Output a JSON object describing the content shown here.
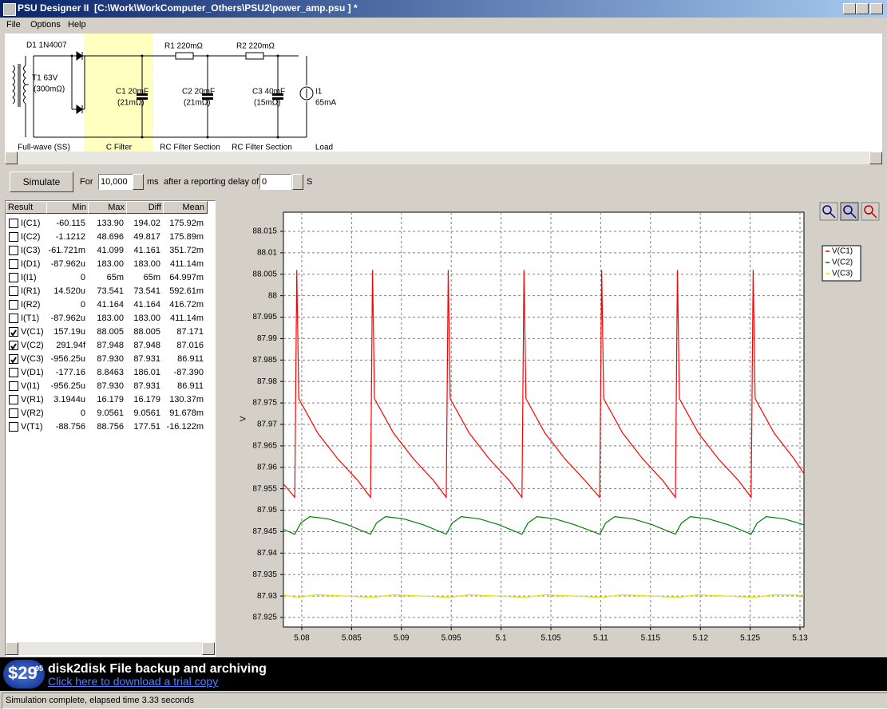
{
  "window": {
    "title": "PSU Designer II  [C:\\Work\\WorkComputer_Others\\PSU2\\power_amp.psu ] *",
    "menu": [
      "File",
      "Options",
      "Help"
    ]
  },
  "schematic": {
    "d1": "D1 1N4007",
    "t1": "T1 63V",
    "t1_r": "(300mΩ)",
    "c1": "C1 20mF",
    "c1_r": "(21mΩ)",
    "r1": "R1 220mΩ",
    "c2": "C2 20mF",
    "c2_r": "(21mΩ)",
    "r2": "R2 220mΩ",
    "c3": "C3 40mF",
    "c3_r": "(15mΩ)",
    "i1": "I1",
    "i1_v": "65mA",
    "sections": [
      "Full-wave (SS)",
      "C Filter",
      "RC Filter Section",
      "RC Filter Section",
      "Load"
    ]
  },
  "toolbar": {
    "button": "Simulate",
    "for_label": "For",
    "duration": "10,000",
    "duration_unit": "ms",
    "delay_label": "after a reporting delay of",
    "delay": "0",
    "delay_unit": "S"
  },
  "results": {
    "headers": [
      "Result",
      "Min",
      "Max",
      "Diff",
      "Mean"
    ],
    "rows": [
      [
        "I(C1)",
        "-60.115",
        "133.90",
        "194.02",
        "175.92m",
        false
      ],
      [
        "I(C2)",
        "-1.1212",
        "48.696",
        "49.817",
        "175.89m",
        false
      ],
      [
        "I(C3)",
        "-61.721m",
        "41.099",
        "41.161",
        "351.72m",
        false
      ],
      [
        "I(D1)",
        "-87.962u",
        "183.00",
        "183.00",
        "411.14m",
        false
      ],
      [
        "I(I1)",
        "0",
        "65m",
        "65m",
        "64.997m",
        false
      ],
      [
        "I(R1)",
        "14.520u",
        "73.541",
        "73.541",
        "592.61m",
        false
      ],
      [
        "I(R2)",
        "0",
        "41.164",
        "41.164",
        "416.72m",
        false
      ],
      [
        "I(T1)",
        "-87.962u",
        "183.00",
        "183.00",
        "411.14m",
        false
      ],
      [
        "V(C1)",
        "157.19u",
        "88.005",
        "88.005",
        "87.171",
        true
      ],
      [
        "V(C2)",
        "291.94f",
        "87.948",
        "87.948",
        "87.016",
        true
      ],
      [
        "V(C3)",
        "-956.25u",
        "87.930",
        "87.931",
        "86.911",
        true
      ],
      [
        "V(D1)",
        "-177.16",
        "8.8463",
        "186.01",
        "-87.390",
        false
      ],
      [
        "V(I1)",
        "-956.25u",
        "87.930",
        "87.931",
        "86.911",
        false
      ],
      [
        "V(R1)",
        "3.1944u",
        "16.179",
        "16.179",
        "130.37m",
        false
      ],
      [
        "V(R2)",
        "0",
        "9.0561",
        "9.0561",
        "91.678m",
        false
      ],
      [
        "V(T1)",
        "-88.756",
        "88.756",
        "177.51",
        "-16.122m",
        false
      ]
    ]
  },
  "chart_data": {
    "type": "line",
    "y_label": "V",
    "xlim": [
      5.07816,
      5.1304
    ],
    "xticks": [
      5.08,
      5.085,
      5.09,
      5.095,
      5.1,
      5.105,
      5.11,
      5.115,
      5.12,
      5.125,
      5.13
    ],
    "ylim": [
      87.92277,
      88.01946
    ],
    "yticks": [
      87.925,
      87.93,
      87.935,
      87.94,
      87.945,
      87.95,
      87.955,
      87.96,
      87.965,
      87.97,
      87.975,
      87.98,
      87.985,
      87.99,
      87.995,
      88,
      88.005,
      88.01,
      88.015
    ],
    "grid": true,
    "series": [
      {
        "name": "V(C1)",
        "color": "#ff0000",
        "x": [
          5.0782,
          5.0793,
          5.0795,
          5.0797,
          5.0816,
          5.0836,
          5.0856,
          5.0869,
          5.0871,
          5.0873,
          5.0892,
          5.0912,
          5.0932,
          5.0945,
          5.0947,
          5.0949,
          5.0968,
          5.0988,
          5.1008,
          5.1021,
          5.1023,
          5.1025,
          5.1044,
          5.1064,
          5.1084,
          5.1099,
          5.1101,
          5.1103,
          5.1122,
          5.1142,
          5.1162,
          5.1175,
          5.1177,
          5.1179,
          5.1198,
          5.1218,
          5.1238,
          5.1251,
          5.1253,
          5.1255,
          5.1274,
          5.1294,
          5.1304
        ],
        "values": [
          87.956,
          87.953,
          88.006,
          87.976,
          87.968,
          87.962,
          87.957,
          87.953,
          88.006,
          87.976,
          87.968,
          87.962,
          87.957,
          87.953,
          88.006,
          87.976,
          87.968,
          87.962,
          87.957,
          87.953,
          88.006,
          87.976,
          87.968,
          87.962,
          87.957,
          87.953,
          88.006,
          87.976,
          87.968,
          87.962,
          87.957,
          87.953,
          88.006,
          87.976,
          87.968,
          87.962,
          87.957,
          87.953,
          88.006,
          87.976,
          87.968,
          87.962,
          87.9585
        ]
      },
      {
        "name": "V(C2)",
        "color": "#008000",
        "x": [
          5.0782,
          5.0793,
          5.0799,
          5.0808,
          5.0826,
          5.0846,
          5.0869,
          5.0875,
          5.0884,
          5.0902,
          5.0922,
          5.0945,
          5.0951,
          5.096,
          5.0978,
          5.0998,
          5.1021,
          5.1027,
          5.1036,
          5.1054,
          5.1074,
          5.1099,
          5.1105,
          5.1114,
          5.1132,
          5.1152,
          5.1175,
          5.1181,
          5.119,
          5.1208,
          5.1228,
          5.1251,
          5.1257,
          5.1266,
          5.1284,
          5.1304
        ],
        "values": [
          87.9455,
          87.9444,
          87.947,
          87.9485,
          87.948,
          87.9466,
          87.9444,
          87.947,
          87.9485,
          87.948,
          87.9466,
          87.9444,
          87.947,
          87.9485,
          87.948,
          87.9466,
          87.9444,
          87.947,
          87.9485,
          87.948,
          87.9466,
          87.9444,
          87.947,
          87.9485,
          87.948,
          87.9466,
          87.9444,
          87.947,
          87.9485,
          87.948,
          87.9466,
          87.9444,
          87.947,
          87.9485,
          87.948,
          87.9466
        ]
      },
      {
        "name": "V(C3)",
        "color": "#e6e600",
        "x": [
          5.0782,
          5.0796,
          5.0816,
          5.0872,
          5.0892,
          5.0948,
          5.0968,
          5.1024,
          5.1044,
          5.1102,
          5.1122,
          5.1178,
          5.1198,
          5.1254,
          5.1274,
          5.1304
        ],
        "values": [
          87.9302,
          87.9297,
          87.9303,
          87.9297,
          87.9303,
          87.9297,
          87.9303,
          87.9297,
          87.9303,
          87.9297,
          87.9303,
          87.9297,
          87.9303,
          87.9297,
          87.9303,
          87.9302
        ]
      }
    ]
  },
  "banner": {
    "price": "$29",
    "cents": "95",
    "title": "disk2disk File backup and archiving",
    "link": "Click here to download a trial copy"
  },
  "status": "Simulation complete, elapsed time 3.33 seconds"
}
